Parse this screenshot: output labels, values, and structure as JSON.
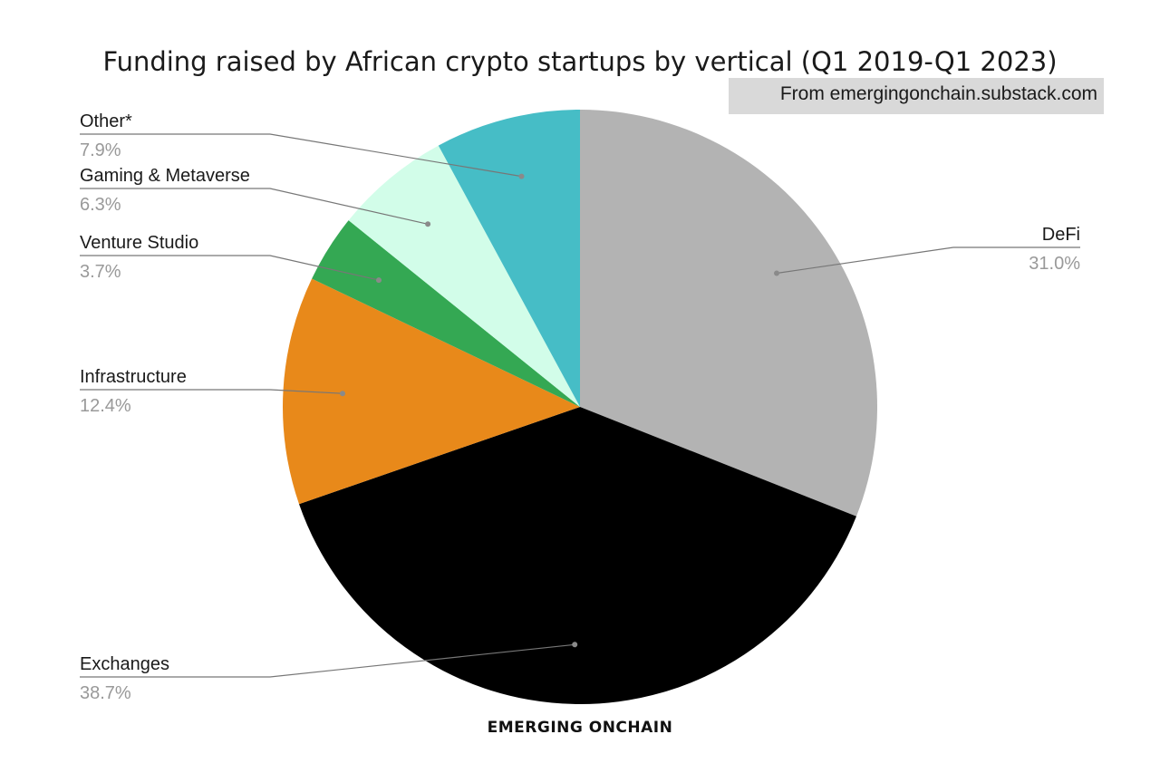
{
  "chart_data": {
    "type": "pie",
    "title": "Funding raised by African crypto startups by vertical (Q1 2019-Q1 2023)",
    "source_note": "From emergingonchain.substack.com",
    "brand": "EMERGING ONCHAIN",
    "start_angle_deg": 0,
    "direction": "clockwise",
    "slices": [
      {
        "label": "DeFi",
        "value": 31.0,
        "value_label": "31.0%",
        "color": "#b3b3b3"
      },
      {
        "label": "Exchanges",
        "value": 38.7,
        "value_label": "38.7%",
        "color": "#000000"
      },
      {
        "label": "Infrastructure",
        "value": 12.4,
        "value_label": "12.4%",
        "color": "#e8891a"
      },
      {
        "label": "Venture Studio",
        "value": 3.7,
        "value_label": "3.7%",
        "color": "#34a853"
      },
      {
        "label": "Gaming & Metaverse",
        "value": 6.3,
        "value_label": "6.3%",
        "color": "#d2fde9"
      },
      {
        "label": "Other*",
        "value": 7.9,
        "value_label": "7.9%",
        "color": "#46bdc6"
      }
    ]
  }
}
